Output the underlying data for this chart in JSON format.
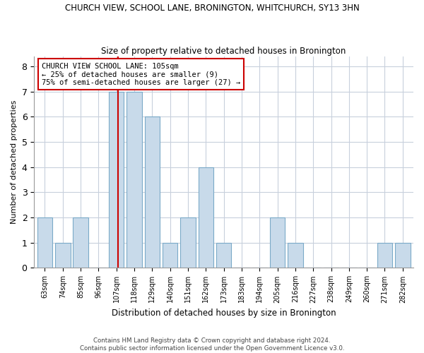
{
  "title1": "CHURCH VIEW, SCHOOL LANE, BRONINGTON, WHITCHURCH, SY13 3HN",
  "title2": "Size of property relative to detached houses in Bronington",
  "xlabel": "Distribution of detached houses by size in Bronington",
  "ylabel": "Number of detached properties",
  "bins": [
    "63sqm",
    "74sqm",
    "85sqm",
    "96sqm",
    "107sqm",
    "118sqm",
    "129sqm",
    "140sqm",
    "151sqm",
    "162sqm",
    "173sqm",
    "183sqm",
    "194sqm",
    "205sqm",
    "216sqm",
    "227sqm",
    "238sqm",
    "249sqm",
    "260sqm",
    "271sqm",
    "282sqm"
  ],
  "counts": [
    2,
    1,
    2,
    0,
    7,
    7,
    6,
    1,
    2,
    4,
    1,
    0,
    0,
    2,
    1,
    0,
    0,
    0,
    0,
    1,
    1
  ],
  "bar_color": "#c8daea",
  "bar_edge_color": "#7baac8",
  "grid_color": "#c8d0dc",
  "vline_x": 4.1,
  "vline_color": "#cc0000",
  "annotation_text": "CHURCH VIEW SCHOOL LANE: 105sqm\n← 25% of detached houses are smaller (9)\n75% of semi-detached houses are larger (27) →",
  "annotation_box_color": "#ffffff",
  "annotation_box_edge": "#cc0000",
  "ylim": [
    0,
    8.4
  ],
  "yticks": [
    0,
    1,
    2,
    3,
    4,
    5,
    6,
    7,
    8
  ],
  "footer1": "Contains HM Land Registry data © Crown copyright and database right 2024.",
  "footer2": "Contains public sector information licensed under the Open Government Licence v3.0."
}
